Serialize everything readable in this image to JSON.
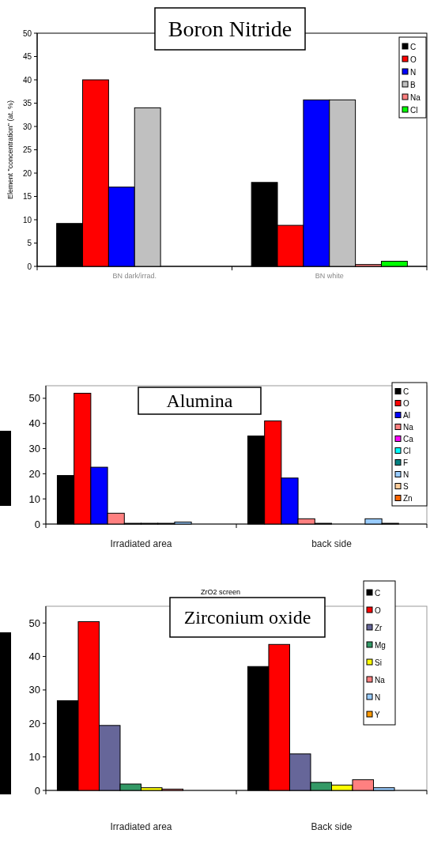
{
  "chart_data": [
    {
      "type": "bar",
      "title": "Boron Nitride",
      "ylabel": "Element \"concentration\" (at. %)",
      "categories": [
        "BN dark/irrad.",
        "BN white"
      ],
      "ylim": [
        0,
        50
      ],
      "yticks": [
        0,
        5,
        10,
        15,
        20,
        25,
        30,
        35,
        40,
        45,
        50
      ],
      "legend": "top right",
      "series": [
        {
          "name": "C",
          "color": "#000000",
          "values": [
            9.2,
            18
          ]
        },
        {
          "name": "O",
          "color": "#ff0000",
          "values": [
            40,
            8.8
          ]
        },
        {
          "name": "N",
          "color": "#0000ff",
          "values": [
            17,
            35.7
          ]
        },
        {
          "name": "B",
          "color": "#c0c0c0",
          "values": [
            34,
            35.7
          ]
        },
        {
          "name": "Na",
          "color": "#ff8080",
          "values": [
            null,
            0.4
          ]
        },
        {
          "name": "Cl",
          "color": "#00ff00",
          "values": [
            null,
            1.1
          ]
        }
      ]
    },
    {
      "type": "bar",
      "title": "Alumina",
      "categories": [
        "Irradiated area",
        "back side"
      ],
      "ylim": [
        0,
        55
      ],
      "yticks": [
        0,
        10,
        20,
        30,
        40,
        50
      ],
      "legend": "top right",
      "series": [
        {
          "name": "C",
          "color": "#000000",
          "values": [
            19.3,
            35
          ]
        },
        {
          "name": "O",
          "color": "#ff0000",
          "values": [
            52,
            41
          ]
        },
        {
          "name": "Al",
          "color": "#0000ff",
          "values": [
            22.6,
            18.3
          ]
        },
        {
          "name": "Na",
          "color": "#ff8080",
          "values": [
            4.3,
            2.1
          ]
        },
        {
          "name": "Ca",
          "color": "#ff00ff",
          "values": [
            0.3,
            0.3
          ]
        },
        {
          "name": "Cl",
          "color": "#00ffff",
          "values": [
            0.3,
            null
          ]
        },
        {
          "name": "F",
          "color": "#008080",
          "values": [
            0.3,
            null
          ]
        },
        {
          "name": "N",
          "color": "#99ccff",
          "values": [
            0.8,
            2.1
          ]
        },
        {
          "name": "S",
          "color": "#ffcc99",
          "values": [
            null,
            0.3
          ]
        },
        {
          "name": "Zn",
          "color": "#ff6600",
          "values": [
            null,
            null
          ]
        }
      ]
    },
    {
      "type": "bar",
      "title": "Zirconium oxide",
      "subtitle": "ZrO2 screen",
      "categories": [
        "Irradiated area",
        "Back side"
      ],
      "ylim": [
        0,
        55
      ],
      "yticks": [
        0,
        10,
        20,
        30,
        40,
        50
      ],
      "legend": "top right",
      "series": [
        {
          "name": "C",
          "color": "#000000",
          "values": [
            26.8,
            37
          ]
        },
        {
          "name": "O",
          "color": "#ff0000",
          "values": [
            50.4,
            43.6
          ]
        },
        {
          "name": "Zr",
          "color": "#666699",
          "values": [
            19.4,
            10.9
          ]
        },
        {
          "name": "Mg",
          "color": "#339966",
          "values": [
            1.9,
            2.4
          ]
        },
        {
          "name": "Si",
          "color": "#ffff00",
          "values": [
            0.8,
            1.6
          ]
        },
        {
          "name": "Na",
          "color": "#ff8080",
          "values": [
            0.4,
            3.2
          ]
        },
        {
          "name": "N",
          "color": "#99ccff",
          "values": [
            null,
            0.8
          ]
        },
        {
          "name": "Y",
          "color": "#ff9900",
          "values": [
            null,
            null
          ]
        }
      ]
    }
  ]
}
